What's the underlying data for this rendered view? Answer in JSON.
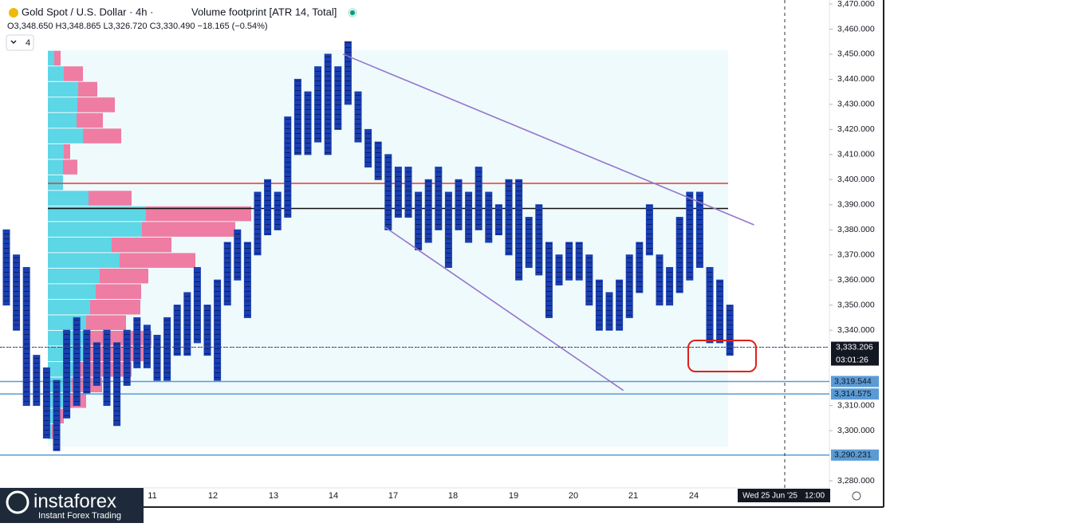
{
  "chart_data": {
    "type": "footprint",
    "title": "Gold Spot / U.S. Dollar · 4h ·",
    "indicator": "Volume footprint [ATR 14, Total]",
    "ohlc_line": "O3,348.650 H3,348.865 L3,326.720 C3,330.490 −18.165 (−0.54%)",
    "interval_box": "4",
    "ylim": [
      3280,
      3470
    ],
    "yticks": [
      {
        "value": 3470,
        "label": "3,470.000"
      },
      {
        "value": 3460,
        "label": "3,460.000"
      },
      {
        "value": 3450,
        "label": "3,450.000"
      },
      {
        "value": 3440,
        "label": "3,440.000"
      },
      {
        "value": 3430,
        "label": "3,430.000"
      },
      {
        "value": 3420,
        "label": "3,420.000"
      },
      {
        "value": 3410,
        "label": "3,410.000"
      },
      {
        "value": 3400,
        "label": "3,400.000"
      },
      {
        "value": 3390,
        "label": "3,390.000"
      },
      {
        "value": 3380,
        "label": "3,380.000"
      },
      {
        "value": 3370,
        "label": "3,370.000"
      },
      {
        "value": 3360,
        "label": "3,360.000"
      },
      {
        "value": 3350,
        "label": "3,350.000"
      },
      {
        "value": 3340,
        "label": "3,340.000"
      },
      {
        "value": 3310,
        "label": "3,310.000"
      },
      {
        "value": 3300,
        "label": "3,300.000"
      },
      {
        "value": 3280,
        "label": "3,280.000"
      }
    ],
    "x_labels": [
      "11",
      "12",
      "13",
      "14",
      "17",
      "18",
      "19",
      "20",
      "21",
      "24"
    ],
    "crosshair_label": "Wed 25 Jun '25",
    "crosshair_time": "12:00",
    "high": [
      3380,
      3370,
      3365,
      3330,
      3325,
      3320,
      3340,
      3345,
      3340,
      3335,
      3340,
      3335,
      3340,
      3345,
      3342,
      3338,
      3345,
      3350,
      3355,
      3365,
      3350,
      3360,
      3375,
      3380,
      3375,
      3395,
      3400,
      3395,
      3425,
      3440,
      3435,
      3445,
      3450,
      3445,
      3455,
      3435,
      3420,
      3415,
      3410,
      3405,
      3405,
      3395,
      3400,
      3405,
      3395,
      3400,
      3395,
      3405,
      3395,
      3390,
      3400,
      3400,
      3385,
      3390,
      3375,
      3370,
      3375,
      3375,
      3370,
      3360,
      3355,
      3360,
      3370,
      3375,
      3390,
      3370,
      3365,
      3385,
      3395,
      3395,
      3365,
      3360,
      3350
    ],
    "low": [
      3350,
      3340,
      3310,
      3310,
      3297,
      3292,
      3305,
      3310,
      3315,
      3318,
      3310,
      3302,
      3318,
      3325,
      3325,
      3320,
      3320,
      3330,
      3330,
      3335,
      3330,
      3320,
      3350,
      3360,
      3345,
      3370,
      3378,
      3380,
      3385,
      3410,
      3410,
      3415,
      3410,
      3420,
      3430,
      3415,
      3405,
      3400,
      3380,
      3385,
      3385,
      3372,
      3375,
      3380,
      3365,
      3380,
      3375,
      3380,
      3375,
      3378,
      3370,
      3360,
      3365,
      3362,
      3345,
      3358,
      3360,
      3360,
      3350,
      3340,
      3340,
      3340,
      3345,
      3355,
      3370,
      3350,
      3350,
      3355,
      3360,
      3365,
      3335,
      3335,
      3330
    ],
    "profile": {
      "price": [
        3448.4,
        3442.2,
        3436.0,
        3429.8,
        3423.6,
        3417.4,
        3411.2,
        3405.0,
        3398.8,
        3392.6,
        3386.4,
        3380.2,
        3374.0,
        3367.8,
        3361.6,
        3355.4,
        3349.2,
        3343.0,
        3336.8,
        3330.6,
        3324.4,
        3318.2,
        3312.0,
        3305.8,
        3299.6
      ],
      "buy": [
        8,
        20,
        38,
        37,
        36,
        44,
        20,
        19,
        19,
        51,
        123,
        118,
        80,
        90,
        65,
        60,
        53,
        48,
        52,
        50,
        40,
        30,
        20,
        10,
        5
      ],
      "sell": [
        8,
        24,
        24,
        47,
        33,
        48,
        8,
        18,
        0,
        54,
        132,
        117,
        75,
        95,
        61,
        57,
        63,
        50,
        78,
        70,
        65,
        38,
        28,
        10,
        5
      ]
    },
    "lines": [
      {
        "value": 3398.5,
        "color": "#e53935"
      },
      {
        "value": 3388.5,
        "color": "#111111"
      }
    ],
    "current_price": {
      "value": 3333.206,
      "label": "3,333.206",
      "timer": "03:01:26"
    },
    "levels": [
      {
        "value": 3319.544,
        "label": "3,319.544"
      },
      {
        "value": 3314.575,
        "label": "3,314.575"
      },
      {
        "value": 3290.231,
        "label": "3,290.231"
      }
    ],
    "trendlines": [
      {
        "x": [
          33.5,
          74.4
        ],
        "y": [
          3450,
          3382
        ]
      },
      {
        "x": [
          37.7,
          61.4
        ],
        "y": [
          3381,
          3316
        ]
      }
    ],
    "bar_color": "#1a3fb0",
    "logo": "instaforex",
    "logo_sub": "Instant Forex Trading"
  }
}
